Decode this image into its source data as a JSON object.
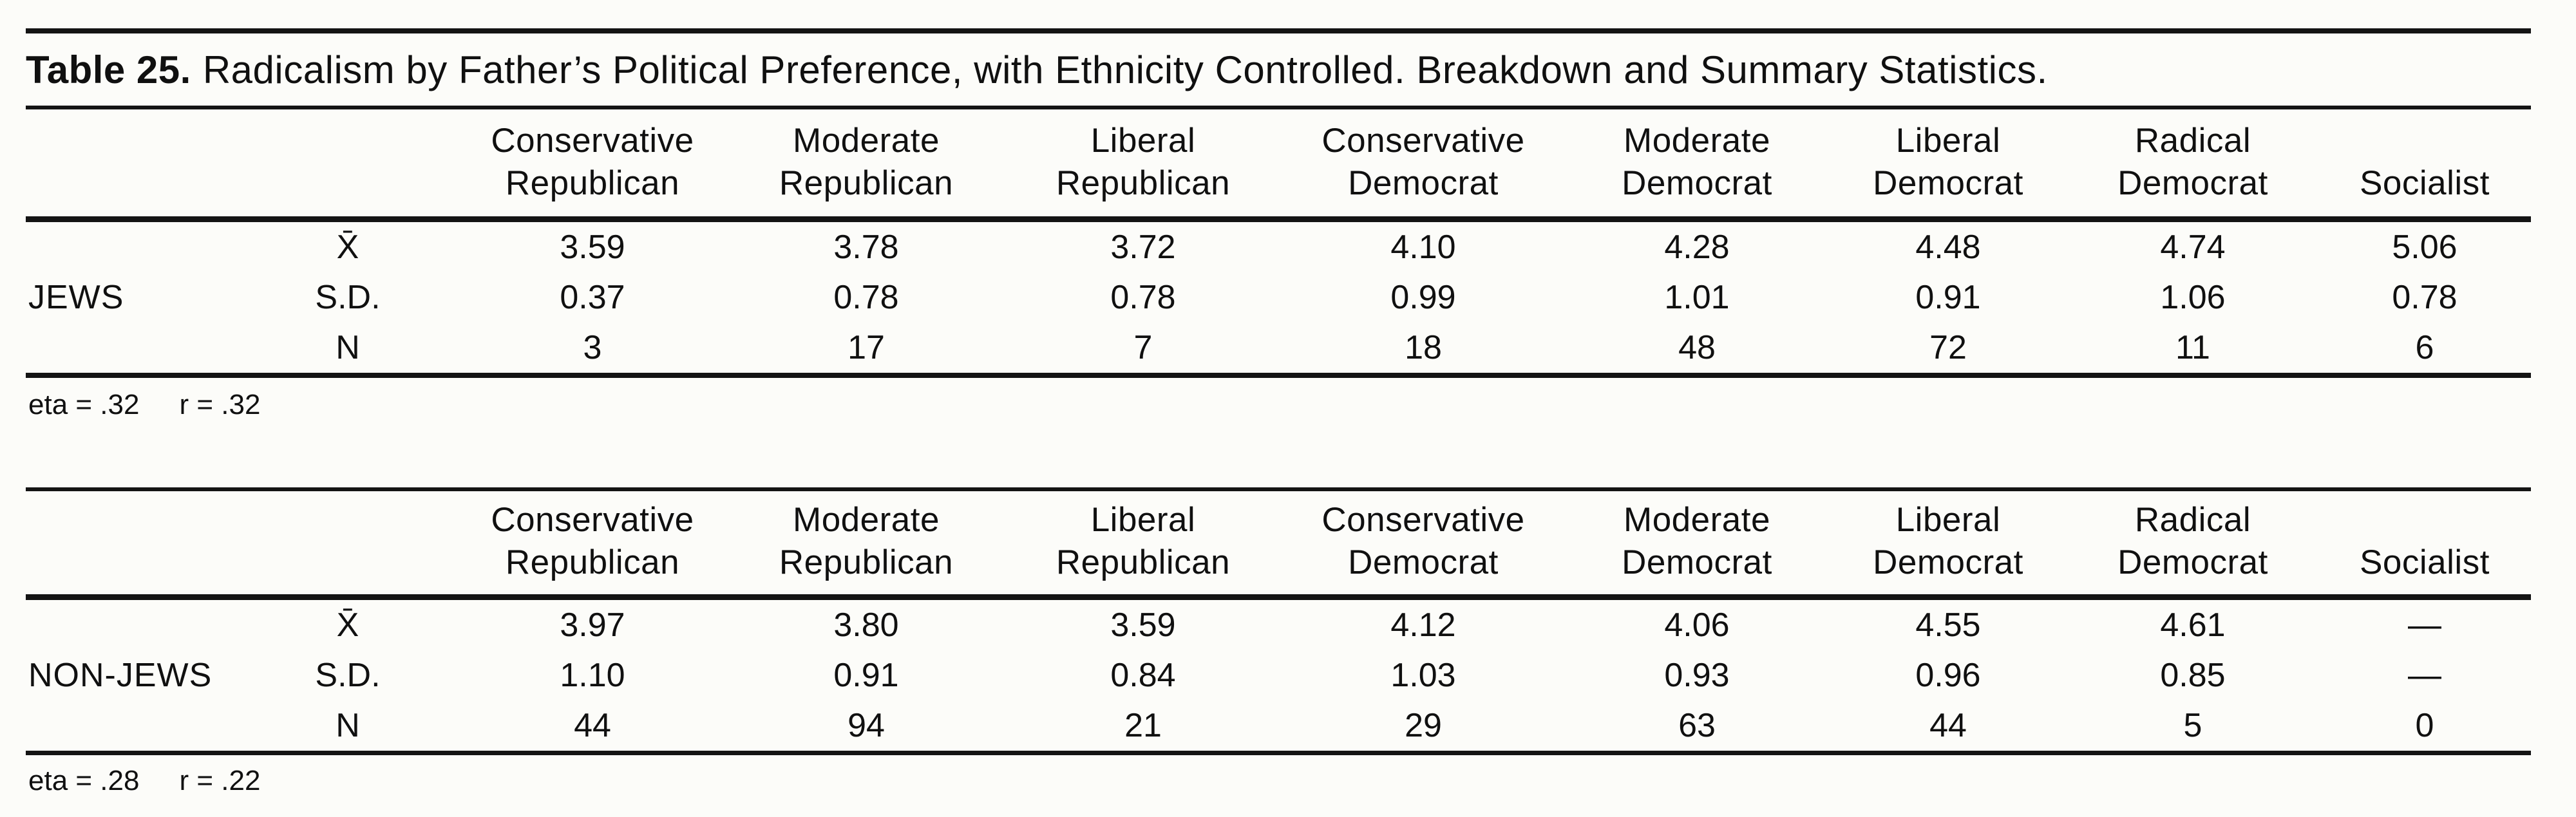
{
  "title": {
    "label": "Table 25.",
    "text": "Radicalism by Father’s Political Preference, with Ethnicity Controlled. Breakdown and Summary Statistics."
  },
  "columns": [
    {
      "line1": "Conservative",
      "line2": "Republican"
    },
    {
      "line1": "Moderate",
      "line2": "Republican"
    },
    {
      "line1": "Liberal",
      "line2": "Republican"
    },
    {
      "line1": "Conservative",
      "line2": "Democrat"
    },
    {
      "line1": "Moderate",
      "line2": "Democrat"
    },
    {
      "line1": "Liberal",
      "line2": "Democrat"
    },
    {
      "line1": "Radical",
      "line2": "Democrat"
    },
    {
      "line1": "",
      "line2": "Socialist"
    }
  ],
  "sections": [
    {
      "group": "JEWS",
      "rows": [
        {
          "label": "X̄",
          "values": [
            "3.59",
            "3.78",
            "3.72",
            "4.10",
            "4.28",
            "4.48",
            "4.74",
            "5.06"
          ]
        },
        {
          "label": "S.D.",
          "values": [
            "0.37",
            "0.78",
            "0.78",
            "0.99",
            "1.01",
            "0.91",
            "1.06",
            "0.78"
          ]
        },
        {
          "label": "N",
          "values": [
            "3",
            "17",
            "7",
            "18",
            "48",
            "72",
            "11",
            "6"
          ]
        }
      ],
      "stats": {
        "eta": "eta = .32",
        "r": "r = .32"
      }
    },
    {
      "group": "NON-JEWS",
      "rows": [
        {
          "label": "X̄",
          "values": [
            "3.97",
            "3.80",
            "3.59",
            "4.12",
            "4.06",
            "4.55",
            "4.61",
            "—"
          ]
        },
        {
          "label": "S.D.",
          "values": [
            "1.10",
            "0.91",
            "0.84",
            "1.03",
            "0.93",
            "0.96",
            "0.85",
            "—"
          ]
        },
        {
          "label": "N",
          "values": [
            "44",
            "94",
            "21",
            "29",
            "63",
            "44",
            "5",
            "0"
          ]
        }
      ],
      "stats": {
        "eta": "eta = .28",
        "r": "r = .22"
      }
    }
  ]
}
